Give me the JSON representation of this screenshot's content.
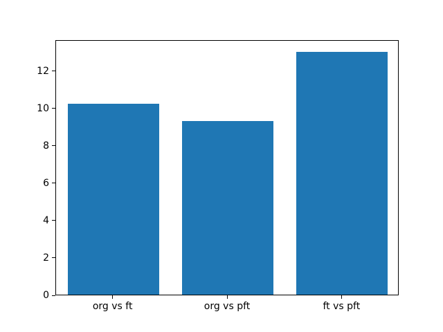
{
  "chart_data": {
    "type": "bar",
    "categories": [
      "org vs ft",
      "org vs pft",
      "ft vs pft"
    ],
    "values": [
      10.2,
      9.3,
      13.0
    ],
    "title": "",
    "xlabel": "",
    "ylabel": "",
    "yticks": [
      0,
      2,
      4,
      6,
      8,
      10,
      12
    ],
    "ylim": [
      0,
      13.65
    ],
    "xlim": [
      -0.5,
      2.5
    ],
    "bar_width_fraction": 0.8,
    "bar_color": "#1f77b4",
    "axis_color": "#000000",
    "background_color": "#ffffff",
    "grid": false,
    "legend": null
  }
}
